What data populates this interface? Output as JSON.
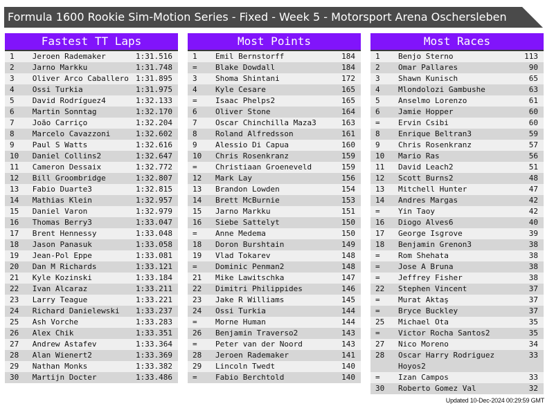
{
  "title": "Formula 1600 Rookie Sim-Motion Series - Fixed - Week 5 - Motorsport Arena Oschersleben",
  "colors": {
    "header_bg": "#8114fb",
    "title_bg": "#4a4a4a",
    "row_light": "#efefef",
    "row_dark": "#d6d6d6"
  },
  "panels": [
    {
      "title": "Fastest TT Laps",
      "rows": [
        [
          "1",
          "Jeroen Rademaker",
          "1:31.516"
        ],
        [
          "2",
          "Jarno Markku",
          "1:31.748"
        ],
        [
          "3",
          "Oliver Arco Caballero",
          "1:31.895"
        ],
        [
          "4",
          "Ossi Turkia",
          "1:31.975"
        ],
        [
          "5",
          "David Rodríguez4",
          "1:32.133"
        ],
        [
          "6",
          "Martin Sonntag",
          "1:32.170"
        ],
        [
          "7",
          "João Carriço",
          "1:32.204"
        ],
        [
          "8",
          "Marcelo Cavazzoni",
          "1:32.602"
        ],
        [
          "9",
          "Paul S Watts",
          "1:32.616"
        ],
        [
          "10",
          "Daniel Collins2",
          "1:32.647"
        ],
        [
          "11",
          "Cameron Dessaix",
          "1:32.772"
        ],
        [
          "12",
          "Bill Groombridge",
          "1:32.807"
        ],
        [
          "13",
          "Fabio Duarte3",
          "1:32.815"
        ],
        [
          "14",
          "Mathias Klein",
          "1:32.957"
        ],
        [
          "15",
          "Daniel Varon",
          "1:32.979"
        ],
        [
          "16",
          "Thomas Berry3",
          "1:33.047"
        ],
        [
          "17",
          "Brent Hennessy",
          "1:33.048"
        ],
        [
          "18",
          "Jason Panasuk",
          "1:33.058"
        ],
        [
          "19",
          "Jean-Pol Eppe",
          "1:33.081"
        ],
        [
          "20",
          "Dan M Richards",
          "1:33.121"
        ],
        [
          "21",
          "Kyle Kozinski",
          "1:33.184"
        ],
        [
          "22",
          "Ivan Alcaraz",
          "1:33.211"
        ],
        [
          "23",
          "Larry Teague",
          "1:33.221"
        ],
        [
          "24",
          "Richard Danielewski",
          "1:33.237"
        ],
        [
          "25",
          "Ash Vorche",
          "1:33.283"
        ],
        [
          "26",
          "Alex Chik",
          "1:33.351"
        ],
        [
          "27",
          "Andrew Astafev",
          "1:33.364"
        ],
        [
          "28",
          "Alan Wienert2",
          "1:33.369"
        ],
        [
          "29",
          "Nathan Monks",
          "1:33.382"
        ],
        [
          "30",
          "Martijn Docter",
          "1:33.486"
        ]
      ]
    },
    {
      "title": "Most Points",
      "rows": [
        [
          "1",
          "Emil Bernstorff",
          "184"
        ],
        [
          "=",
          "Blake Dowdall",
          "184"
        ],
        [
          "3",
          "Shoma Shintani",
          "172"
        ],
        [
          "4",
          "Kyle Cesare",
          "165"
        ],
        [
          "=",
          "Isaac Phelps2",
          "165"
        ],
        [
          "6",
          "Oliver Stone",
          "164"
        ],
        [
          "7",
          "Oscar Chinchilla Maza3",
          "163"
        ],
        [
          "8",
          "Roland Alfredsson",
          "161"
        ],
        [
          "9",
          "Alessio Di Capua",
          "160"
        ],
        [
          "10",
          "Chris Rosenkranz",
          "159"
        ],
        [
          "=",
          "Christiaan Groeneveld",
          "159"
        ],
        [
          "12",
          "Mark Lay",
          "156"
        ],
        [
          "13",
          "Brandon Lowden",
          "154"
        ],
        [
          "14",
          "Brett McBurnie",
          "153"
        ],
        [
          "15",
          "Jarno Markku",
          "151"
        ],
        [
          "16",
          "Siebe Sattelyt",
          "150"
        ],
        [
          "=",
          "Anne Medema",
          "150"
        ],
        [
          "18",
          "Doron Burshtain",
          "149"
        ],
        [
          "19",
          "Vlad Tokarev",
          "148"
        ],
        [
          "=",
          "Dominic Penman2",
          "148"
        ],
        [
          "21",
          "Mike Lawitschka",
          "147"
        ],
        [
          "22",
          "Dimitri Philippides",
          "146"
        ],
        [
          "23",
          "Jake R Williams",
          "145"
        ],
        [
          "24",
          "Ossi Turkia",
          "144"
        ],
        [
          "=",
          "Morne Human",
          "144"
        ],
        [
          "26",
          "Benjamin Traverso2",
          "143"
        ],
        [
          "=",
          "Peter van der Noord",
          "143"
        ],
        [
          "28",
          "Jeroen Rademaker",
          "141"
        ],
        [
          "29",
          "Lincoln Twedt",
          "140"
        ],
        [
          "=",
          "Fabio Berchtold",
          "140"
        ]
      ]
    },
    {
      "title": "Most Races",
      "rows": [
        [
          "1",
          "Benjo Sterno",
          "113"
        ],
        [
          "2",
          "Omar Pallares",
          "90"
        ],
        [
          "3",
          "Shawn Kunisch",
          "65"
        ],
        [
          "4",
          "Mlondolozi Gambushe",
          "63"
        ],
        [
          "5",
          "Anselmo Lorenzo",
          "61"
        ],
        [
          "6",
          "Jamie Hopper",
          "60"
        ],
        [
          "=",
          "Ervin Csibi",
          "60"
        ],
        [
          "8",
          "Enrique Beltran3",
          "59"
        ],
        [
          "9",
          "Chris Rosenkranz",
          "57"
        ],
        [
          "10",
          "Mario Ras",
          "56"
        ],
        [
          "11",
          "David Leach2",
          "51"
        ],
        [
          "12",
          "Scott Burns2",
          "48"
        ],
        [
          "13",
          "Mitchell Hunter",
          "47"
        ],
        [
          "14",
          "Andres Margas",
          "42"
        ],
        [
          "=",
          "Yin Taoy",
          "42"
        ],
        [
          "16",
          "Diogo Alves6",
          "40"
        ],
        [
          "17",
          "George Isgrove",
          "39"
        ],
        [
          "18",
          "Benjamin Grenon3",
          "38"
        ],
        [
          "=",
          "Rom Shehata",
          "38"
        ],
        [
          "=",
          "Jose A Bruna",
          "38"
        ],
        [
          "=",
          "Jeffrey Fisher",
          "38"
        ],
        [
          "22",
          "Stephen Vincent",
          "37"
        ],
        [
          "=",
          "Murat Aktaş",
          "37"
        ],
        [
          "=",
          "Bryce Buckley",
          "37"
        ],
        [
          "25",
          "Michael Ota",
          "35"
        ],
        [
          "=",
          "Victor Rocha Santos2",
          "35"
        ],
        [
          "27",
          "Nico Moreno",
          "34"
        ],
        [
          "28",
          "Oscar Harry Rodriguez Hoyos2",
          "33"
        ],
        [
          "=",
          "Izan Campos",
          "33"
        ],
        [
          "30",
          "Roberto Gomez Val",
          "32"
        ]
      ]
    }
  ],
  "updated": "Updated 10-Dec-2024 00:29:59 GMT"
}
